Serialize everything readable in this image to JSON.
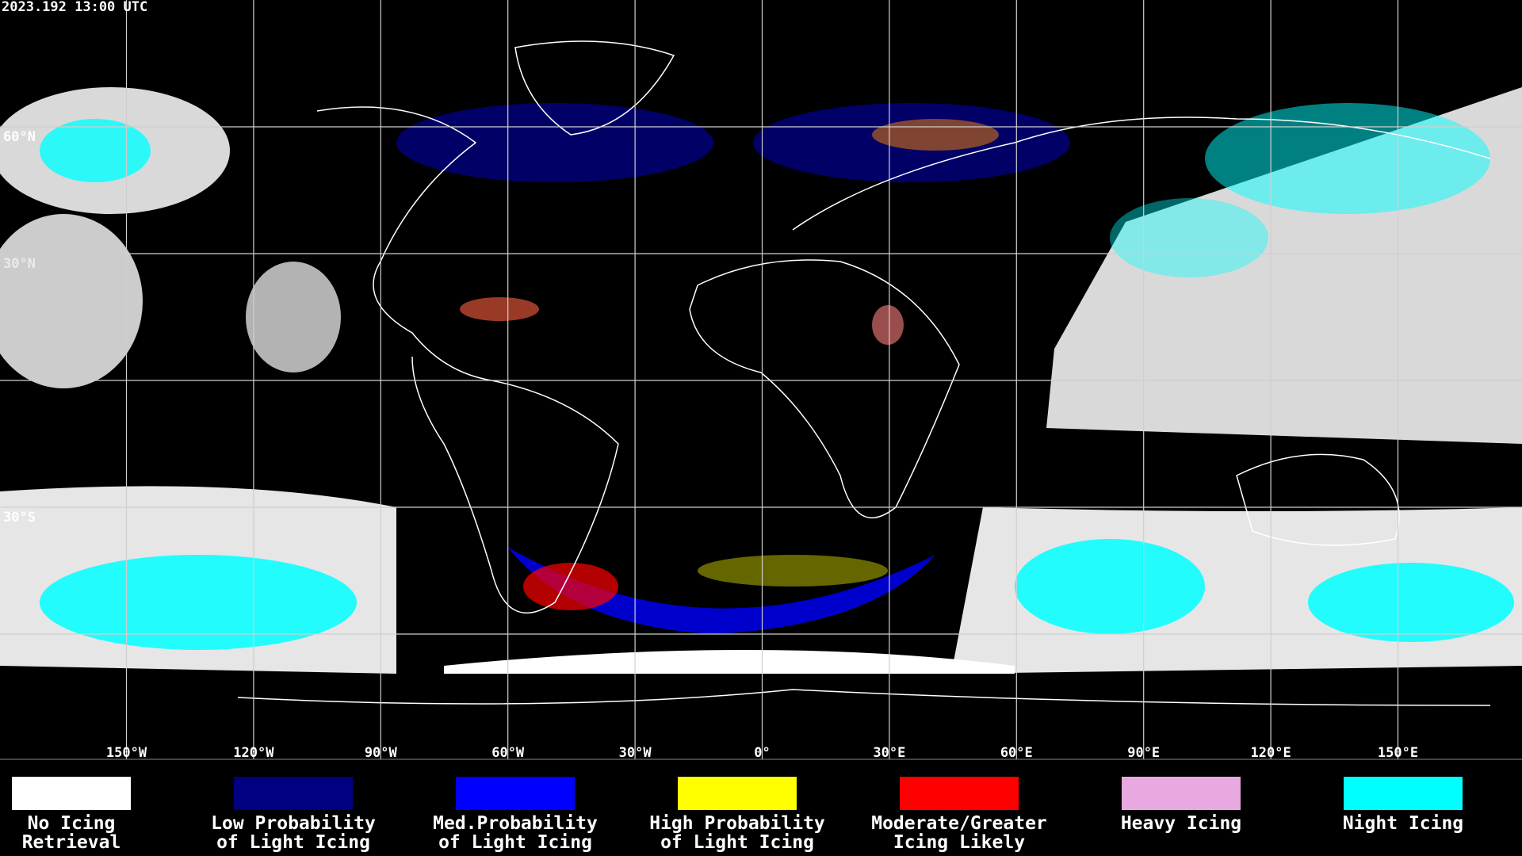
{
  "timestamp": "2023.192 13:00 UTC",
  "lat_labels": [
    "60°N",
    "30°N",
    "30°S"
  ],
  "lon_labels": [
    "150°W",
    "120°W",
    "90°W",
    "60°W",
    "30°W",
    "0°",
    "30°E",
    "60°E",
    "90°E",
    "120°E",
    "150°E"
  ],
  "legend": [
    {
      "lines": [
        "No Icing",
        "Retrieval"
      ],
      "color": "#ffffff"
    },
    {
      "lines": [
        "Low Probability",
        "of Light Icing"
      ],
      "color": "#000080"
    },
    {
      "lines": [
        "Med.Probability",
        "of Light Icing"
      ],
      "color": "#0000ff"
    },
    {
      "lines": [
        "High Probability",
        "of Light Icing"
      ],
      "color": "#ffff00"
    },
    {
      "lines": [
        "Moderate/Greater",
        "Icing Likely"
      ],
      "color": "#ff0000"
    },
    {
      "lines": [
        "Heavy Icing"
      ],
      "color": "#e8a8e0"
    },
    {
      "lines": [
        "Night Icing"
      ],
      "color": "#00ffff"
    }
  ]
}
